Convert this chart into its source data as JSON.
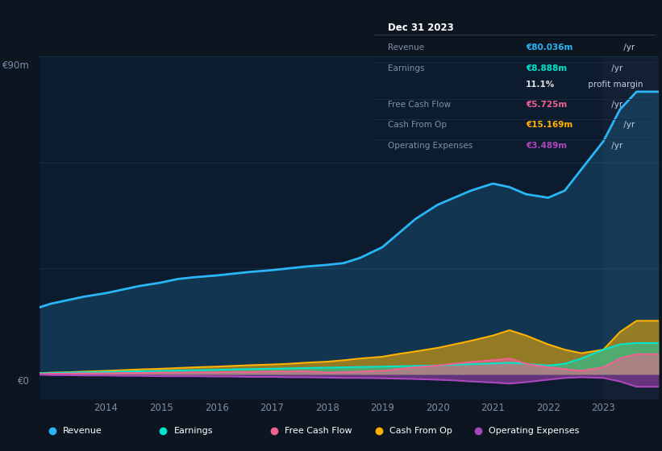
{
  "bg_color": "#0d1520",
  "chart_bg": "#0d1b2e",
  "y_label_top": "€90m",
  "y_label_bottom": "€0",
  "years": [
    2012.8,
    2013.0,
    2013.3,
    2013.6,
    2014.0,
    2014.3,
    2014.6,
    2015.0,
    2015.3,
    2015.6,
    2016.0,
    2016.3,
    2016.6,
    2017.0,
    2017.3,
    2017.6,
    2018.0,
    2018.3,
    2018.6,
    2019.0,
    2019.3,
    2019.6,
    2020.0,
    2020.3,
    2020.6,
    2021.0,
    2021.3,
    2021.6,
    2022.0,
    2022.3,
    2022.6,
    2023.0,
    2023.3,
    2023.6,
    2024.0
  ],
  "revenue": [
    19,
    20,
    21,
    22,
    23,
    24,
    25,
    26,
    27,
    27.5,
    28,
    28.5,
    29,
    29.5,
    30,
    30.5,
    31,
    31.5,
    33,
    36,
    40,
    44,
    48,
    50,
    52,
    54,
    53,
    51,
    50,
    52,
    58,
    66,
    75,
    80,
    80
  ],
  "earnings": [
    0.3,
    0.4,
    0.5,
    0.6,
    0.7,
    0.8,
    0.9,
    1.0,
    1.1,
    1.2,
    1.3,
    1.4,
    1.5,
    1.6,
    1.7,
    1.8,
    1.9,
    2.0,
    2.1,
    2.2,
    2.3,
    2.4,
    2.5,
    2.7,
    2.9,
    3.1,
    3.3,
    3.0,
    2.5,
    3.0,
    4.5,
    7.0,
    8.5,
    8.888,
    8.888
  ],
  "free_cash_flow": [
    0.1,
    0.2,
    0.2,
    0.3,
    0.3,
    0.4,
    0.4,
    0.5,
    0.5,
    0.6,
    0.6,
    0.7,
    0.7,
    0.8,
    0.8,
    0.9,
    0.5,
    0.6,
    0.8,
    1.0,
    1.5,
    2.0,
    2.5,
    3.0,
    3.5,
    4.0,
    4.5,
    3.0,
    2.0,
    1.5,
    1.0,
    2.0,
    4.5,
    5.725,
    5.725
  ],
  "cash_from_op": [
    0.3,
    0.5,
    0.6,
    0.8,
    1.0,
    1.2,
    1.4,
    1.6,
    1.8,
    2.0,
    2.2,
    2.4,
    2.6,
    2.8,
    3.0,
    3.3,
    3.6,
    4.0,
    4.5,
    5.0,
    5.8,
    6.5,
    7.5,
    8.5,
    9.5,
    11.0,
    12.5,
    11.0,
    8.5,
    7.0,
    6.0,
    7.0,
    12.0,
    15.169,
    15.169
  ],
  "op_expenses": [
    -0.1,
    -0.2,
    -0.2,
    -0.3,
    -0.3,
    -0.4,
    -0.4,
    -0.5,
    -0.5,
    -0.5,
    -0.6,
    -0.6,
    -0.7,
    -0.7,
    -0.8,
    -0.8,
    -0.9,
    -1.0,
    -1.0,
    -1.1,
    -1.2,
    -1.3,
    -1.5,
    -1.7,
    -2.0,
    -2.3,
    -2.6,
    -2.2,
    -1.5,
    -1.0,
    -0.8,
    -1.0,
    -2.0,
    -3.489,
    -3.489
  ],
  "revenue_color": "#29b6f6",
  "earnings_color": "#00e5cc",
  "fcf_color": "#f06292",
  "cashop_color": "#ffb300",
  "opex_color": "#ab47bc",
  "grid_color": "#1a2e45",
  "shade_color": "#162235",
  "info_box": {
    "title": "Dec 31 2023",
    "rows": [
      {
        "label": "Revenue",
        "value": "€80.036m",
        "unit": " /yr",
        "value_color": "#29b6f6",
        "has_sep": true
      },
      {
        "label": "Earnings",
        "value": "€8.888m",
        "unit": " /yr",
        "value_color": "#00e5cc",
        "has_sep": false
      },
      {
        "label": "",
        "value": "11.1%",
        "unit": " profit margin",
        "value_color": "#e0e0e0",
        "has_sep": true
      },
      {
        "label": "Free Cash Flow",
        "value": "€5.725m",
        "unit": " /yr",
        "value_color": "#f06292",
        "has_sep": true
      },
      {
        "label": "Cash From Op",
        "value": "€15.169m",
        "unit": " /yr",
        "value_color": "#ffb300",
        "has_sep": true
      },
      {
        "label": "Operating Expenses",
        "value": "€3.489m",
        "unit": " /yr",
        "value_color": "#ab47bc",
        "has_sep": false
      }
    ]
  },
  "legend_items": [
    {
      "label": "Revenue",
      "color": "#29b6f6"
    },
    {
      "label": "Earnings",
      "color": "#00e5cc"
    },
    {
      "label": "Free Cash Flow",
      "color": "#f06292"
    },
    {
      "label": "Cash From Op",
      "color": "#ffb300"
    },
    {
      "label": "Operating Expenses",
      "color": "#ab47bc"
    }
  ]
}
